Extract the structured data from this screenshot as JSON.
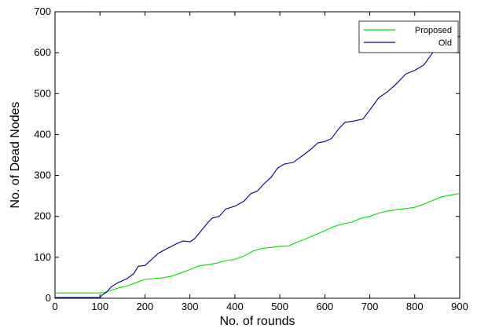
{
  "chart_data": {
    "type": "line",
    "title": "",
    "xlabel": "No. of rounds",
    "ylabel": "No. of Dead Nodes",
    "xlim": [
      0,
      900
    ],
    "ylim": [
      0,
      700
    ],
    "xticks": [
      0,
      100,
      200,
      300,
      400,
      500,
      600,
      700,
      800,
      900
    ],
    "yticks": [
      0,
      100,
      200,
      300,
      400,
      500,
      600,
      700
    ],
    "grid": false,
    "legend_position": "top-right",
    "series": [
      {
        "name": "Proposed",
        "color": "#00dd00",
        "points": [
          [
            0,
            13
          ],
          [
            100,
            13
          ],
          [
            110,
            14
          ],
          [
            120,
            18
          ],
          [
            140,
            25
          ],
          [
            160,
            30
          ],
          [
            180,
            38
          ],
          [
            200,
            46
          ],
          [
            220,
            48
          ],
          [
            240,
            50
          ],
          [
            260,
            54
          ],
          [
            280,
            62
          ],
          [
            300,
            70
          ],
          [
            320,
            79
          ],
          [
            340,
            82
          ],
          [
            360,
            86
          ],
          [
            380,
            92
          ],
          [
            400,
            95
          ],
          [
            420,
            103
          ],
          [
            440,
            115
          ],
          [
            460,
            122
          ],
          [
            480,
            124
          ],
          [
            500,
            127
          ],
          [
            520,
            128
          ],
          [
            540,
            138
          ],
          [
            560,
            146
          ],
          [
            580,
            156
          ],
          [
            600,
            165
          ],
          [
            620,
            175
          ],
          [
            640,
            182
          ],
          [
            660,
            186
          ],
          [
            680,
            195
          ],
          [
            700,
            200
          ],
          [
            720,
            208
          ],
          [
            740,
            213
          ],
          [
            760,
            217
          ],
          [
            780,
            219
          ],
          [
            800,
            222
          ],
          [
            820,
            230
          ],
          [
            840,
            239
          ],
          [
            860,
            248
          ],
          [
            880,
            252
          ],
          [
            900,
            256
          ]
        ]
      },
      {
        "name": "Old",
        "color": "#00008b",
        "points": [
          [
            0,
            2
          ],
          [
            100,
            2
          ],
          [
            105,
            8
          ],
          [
            115,
            15
          ],
          [
            125,
            28
          ],
          [
            140,
            38
          ],
          [
            160,
            48
          ],
          [
            175,
            60
          ],
          [
            185,
            78
          ],
          [
            200,
            80
          ],
          [
            215,
            95
          ],
          [
            230,
            110
          ],
          [
            250,
            122
          ],
          [
            270,
            133
          ],
          [
            285,
            140
          ],
          [
            300,
            138
          ],
          [
            310,
            145
          ],
          [
            325,
            165
          ],
          [
            340,
            185
          ],
          [
            350,
            196
          ],
          [
            365,
            200
          ],
          [
            380,
            218
          ],
          [
            400,
            225
          ],
          [
            420,
            237
          ],
          [
            435,
            255
          ],
          [
            450,
            262
          ],
          [
            465,
            280
          ],
          [
            480,
            295
          ],
          [
            495,
            318
          ],
          [
            510,
            328
          ],
          [
            530,
            332
          ],
          [
            550,
            348
          ],
          [
            570,
            365
          ],
          [
            585,
            380
          ],
          [
            600,
            383
          ],
          [
            615,
            390
          ],
          [
            630,
            413
          ],
          [
            645,
            430
          ],
          [
            665,
            433
          ],
          [
            685,
            438
          ],
          [
            700,
            460
          ],
          [
            720,
            490
          ],
          [
            740,
            505
          ],
          [
            760,
            525
          ],
          [
            780,
            548
          ],
          [
            800,
            557
          ],
          [
            820,
            570
          ],
          [
            840,
            600
          ],
          [
            860,
            628
          ],
          [
            880,
            633
          ],
          [
            900,
            640
          ]
        ]
      }
    ]
  }
}
